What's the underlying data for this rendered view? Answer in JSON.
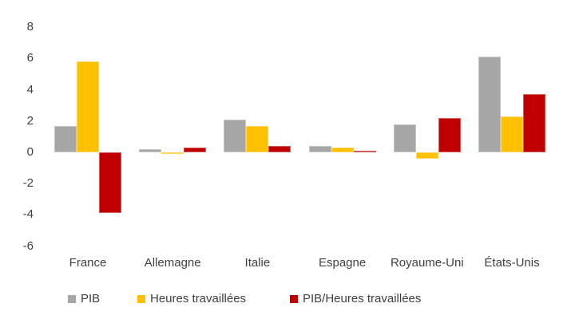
{
  "chart_data": {
    "type": "bar",
    "title": "",
    "xlabel": "",
    "ylabel": "",
    "categories": [
      "France",
      "Allemagne",
      "Italie",
      "Espagne",
      "Royaume-Uni",
      "États-Unis"
    ],
    "series": [
      {
        "name": "PIB",
        "color": "#A6A6A6",
        "values": [
          1.7,
          0.2,
          2.1,
          0.4,
          1.8,
          6.1
        ]
      },
      {
        "name": "Heures travaillées",
        "color": "#FFC000",
        "values": [
          5.8,
          -0.1,
          1.7,
          0.3,
          -0.4,
          2.3
        ]
      },
      {
        "name": "PIB/Heures travaillées",
        "color": "#C00000",
        "values": [
          -3.9,
          0.3,
          0.4,
          0.1,
          2.2,
          3.7
        ]
      }
    ],
    "ylim": [
      -6,
      8
    ],
    "yticks": [
      8,
      6,
      4,
      2,
      0,
      -2,
      -4,
      -6
    ],
    "grid": false,
    "axis_lines": false,
    "legend_position": "bottom"
  },
  "colors": {
    "background": "#FFFFFF",
    "text": "#404040",
    "series_gray": "#A6A6A6",
    "series_yellow": "#FFC000",
    "series_red": "#C00000"
  }
}
